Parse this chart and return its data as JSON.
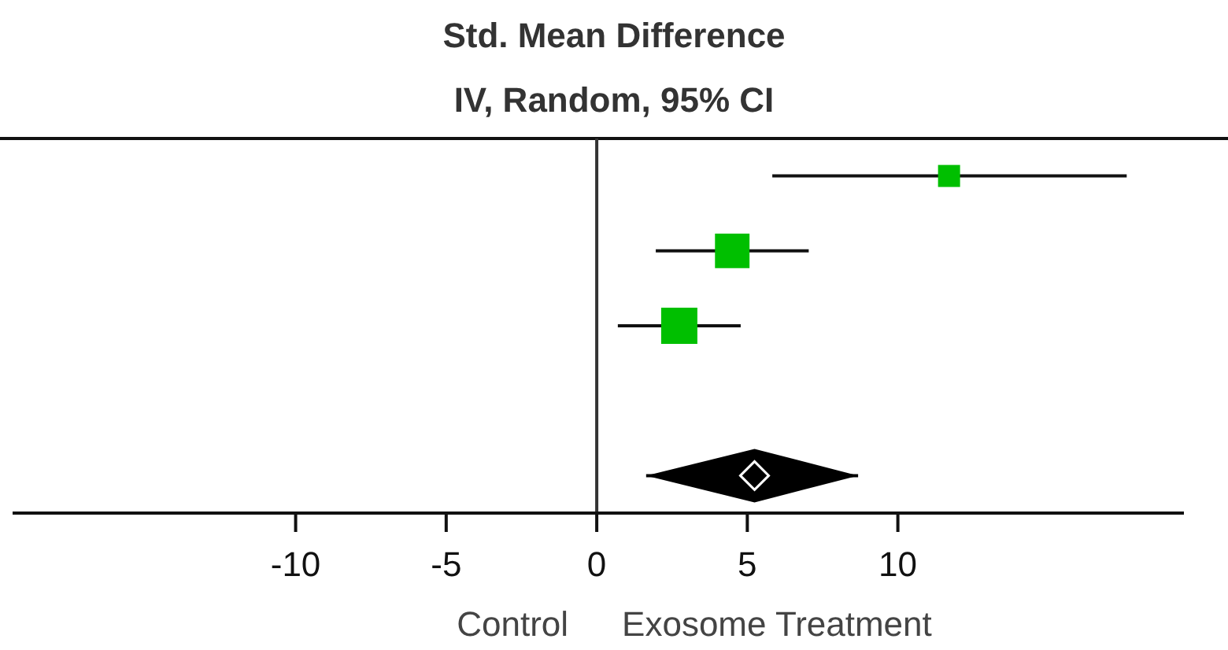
{
  "chart_data": {
    "type": "scatter",
    "title": "Std. Mean Difference",
    "subtitle": "IV, Random, 95% CI",
    "orientation": "horizontal",
    "categories": [
      null,
      null,
      null,
      null,
      null
    ],
    "series": [
      {
        "color": "#00bf00",
        "marker": "square",
        "values": [
          11.7,
          4.5,
          2.74,
          null,
          null
        ],
        "sizes": [
          0.37,
          0.91,
          1,
          null,
          null
        ],
        "errors": [
          [
            5.83,
            17.6
          ],
          [
            1.96,
            7.04
          ],
          [
            0.7,
            4.78
          ],
          null,
          null
        ]
      },
      {
        "color": "#000000",
        "marker": "diamond",
        "values": [
          null,
          null,
          null,
          null,
          5.24
        ],
        "errors": [
          null,
          null,
          null,
          null,
          [
            1.64,
            8.68
          ]
        ]
      }
    ],
    "xlim": [
      -19.4,
      19.5
    ],
    "xticks": [
      -10,
      -5,
      0,
      5,
      10
    ],
    "ref_lines": [
      {
        "axis": "x",
        "value": 0,
        "color": "#333333"
      }
    ],
    "annotations": [
      "Control",
      "Exosome Treatment"
    ],
    "grid": false
  }
}
